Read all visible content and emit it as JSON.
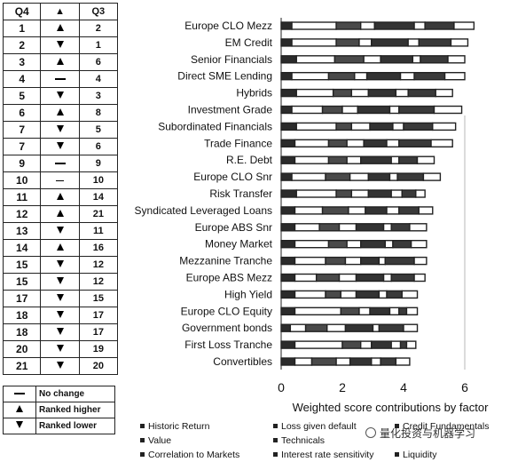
{
  "rank_table": {
    "headers": {
      "q4": "Q4",
      "arrow": "▲",
      "q3": "Q3"
    },
    "rows": [
      {
        "q4": "1",
        "move": "up",
        "q3": "2"
      },
      {
        "q4": "2",
        "move": "down",
        "q3": "1"
      },
      {
        "q4": "3",
        "move": "up",
        "q3": "6"
      },
      {
        "q4": "4",
        "move": "same",
        "q3": "4"
      },
      {
        "q4": "5",
        "move": "down",
        "q3": "3"
      },
      {
        "q4": "6",
        "move": "up",
        "q3": "8"
      },
      {
        "q4": "7",
        "move": "down",
        "q3": "5"
      },
      {
        "q4": "7",
        "move": "down",
        "q3": "6"
      },
      {
        "q4": "9",
        "move": "same",
        "q3": "9"
      },
      {
        "q4": "10",
        "move": "same-thin",
        "q3": "10"
      },
      {
        "q4": "11",
        "move": "up",
        "q3": "14"
      },
      {
        "q4": "12",
        "move": "up",
        "q3": "21"
      },
      {
        "q4": "13",
        "move": "down",
        "q3": "11"
      },
      {
        "q4": "14",
        "move": "up",
        "q3": "16"
      },
      {
        "q4": "15",
        "move": "down",
        "q3": "12"
      },
      {
        "q4": "15",
        "move": "down",
        "q3": "12"
      },
      {
        "q4": "17",
        "move": "down",
        "q3": "15"
      },
      {
        "q4": "18",
        "move": "down",
        "q3": "17"
      },
      {
        "q4": "18",
        "move": "down",
        "q3": "17"
      },
      {
        "q4": "20",
        "move": "down",
        "q3": "19"
      },
      {
        "q4": "21",
        "move": "down",
        "q3": "20"
      }
    ]
  },
  "rank_legend": [
    {
      "icon": "dash-icon",
      "label": "No change"
    },
    {
      "icon": "triangle-up-icon",
      "label": "Ranked higher"
    },
    {
      "icon": "triangle-down-icon",
      "label": "Ranked lower"
    }
  ],
  "chart_data": {
    "type": "bar",
    "orientation": "horizontal",
    "stacked": true,
    "title": "",
    "xlabel": "Weighted score contributions by factor",
    "ylabel": "",
    "xlim": [
      0,
      6.5
    ],
    "xticks": [
      0,
      2,
      4,
      6
    ],
    "grid": false,
    "legend_position": "bottom",
    "categories": [
      "Europe CLO Mezz",
      "EM Credit",
      "Senior Financials",
      "Direct SME Lending",
      "Hybrids",
      "Investment Grade",
      "Subordinated Financials",
      "Trade Finance",
      "R.E. Debt",
      "Europe CLO Snr",
      "Risk Transfer",
      "Syndicated Leveraged Loans",
      "Europe ABS Snr",
      "Money Market",
      "Mezzanine Tranche",
      "Europe ABS Mezz",
      "High Yield",
      "Europe CLO Equity",
      "Government bonds",
      "First Loss Tranche",
      "Convertibles"
    ],
    "series": [
      {
        "name": "Historic Return",
        "values": [
          0.35,
          0.35,
          0.5,
          0.35,
          0.5,
          0.35,
          0.5,
          0.45,
          0.45,
          0.35,
          0.5,
          0.45,
          0.45,
          0.45,
          0.45,
          0.45,
          0.45,
          0.45,
          0.3,
          0.45,
          0.45
        ]
      },
      {
        "name": "Value",
        "values": [
          1.45,
          1.45,
          1.25,
          1.2,
          1.2,
          1.0,
          1.3,
          1.1,
          1.1,
          1.1,
          1.3,
          0.9,
          0.8,
          1.1,
          1.0,
          0.7,
          1.0,
          1.5,
          0.5,
          1.55,
          0.55
        ]
      },
      {
        "name": "Correlation to Markets",
        "values": [
          0.8,
          0.75,
          0.95,
          0.85,
          0.6,
          0.65,
          0.5,
          0.6,
          0.6,
          0.8,
          0.5,
          0.85,
          0.65,
          0.6,
          0.65,
          0.75,
          0.5,
          0.6,
          0.7,
          0.6,
          0.8
        ]
      },
      {
        "name": "Loss given default",
        "values": [
          0.45,
          0.4,
          0.55,
          0.4,
          0.55,
          0.5,
          0.6,
          0.55,
          0.45,
          0.6,
          0.55,
          0.55,
          0.55,
          0.45,
          0.5,
          0.55,
          0.5,
          0.35,
          0.6,
          0.35,
          0.45
        ]
      },
      {
        "name": "Technicals",
        "values": [
          1.3,
          1.2,
          1.05,
          1.1,
          0.9,
          1.05,
          0.75,
          0.75,
          1.0,
          0.7,
          0.75,
          0.7,
          0.9,
          0.8,
          0.6,
          0.9,
          0.75,
          0.65,
          0.9,
          0.65,
          0.7
        ]
      },
      {
        "name": "Interest rate sensitivity",
        "values": [
          0.35,
          0.35,
          0.25,
          0.45,
          0.4,
          0.3,
          0.35,
          0.4,
          0.25,
          0.25,
          0.35,
          0.4,
          0.25,
          0.25,
          0.2,
          0.25,
          0.25,
          0.3,
          0.2,
          0.3,
          0.3
        ]
      },
      {
        "name": "Credit Fundamentals",
        "values": [
          0.95,
          1.05,
          0.9,
          1.0,
          0.9,
          1.15,
          0.95,
          1.05,
          0.6,
          0.85,
          0.45,
          0.65,
          0.6,
          0.6,
          0.95,
          0.75,
          0.5,
          0.25,
          0.8,
          0.2,
          0.5
        ]
      },
      {
        "name": "Liquidity",
        "values": [
          0.65,
          0.55,
          0.55,
          0.65,
          0.55,
          0.9,
          0.75,
          0.7,
          0.55,
          0.55,
          0.3,
          0.45,
          0.55,
          0.5,
          0.4,
          0.35,
          0.5,
          0.35,
          0.45,
          0.3,
          0.45
        ]
      }
    ]
  },
  "watermark": {
    "text": "量化投资与机器学习",
    "icon": "wechat-icon"
  }
}
